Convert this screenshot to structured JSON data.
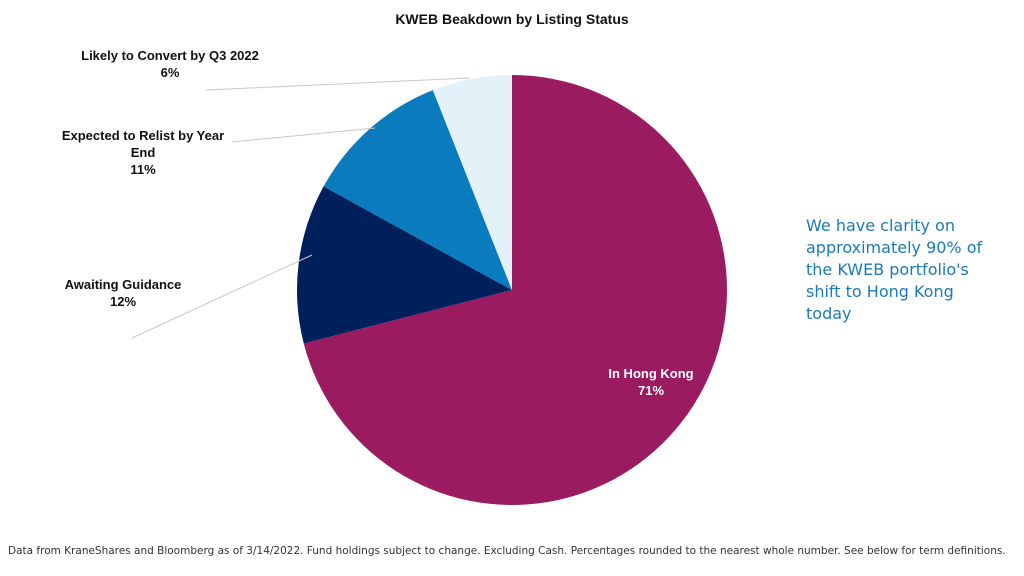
{
  "chart_data": {
    "type": "pie",
    "title": "KWEB Beakdown by Listing Status",
    "slices": [
      {
        "name": "In Hong Kong",
        "value": 71,
        "label": "71%",
        "color": "#9b1b60"
      },
      {
        "name": "Awaiting Guidance",
        "value": 12,
        "label": "12%",
        "color": "#00205b"
      },
      {
        "name": "Expected to Relist by Year End",
        "value": 11,
        "label": "11%",
        "color": "#0a7bbd"
      },
      {
        "name": "Likely to Convert by Q3 2022",
        "value": 6,
        "label": "6%",
        "color": "#e3f2f9"
      }
    ],
    "start": "12 o'clock",
    "direction": "clockwise"
  },
  "callout": "We have clarity on approximately 90% of the KWEB portfolio's shift to Hong Kong today",
  "footnote": "Data from KraneShares and Bloomberg as of 3/14/2022. Fund holdings subject to change. Excluding Cash. Percentages rounded to the nearest whole number. See below for term definitions."
}
